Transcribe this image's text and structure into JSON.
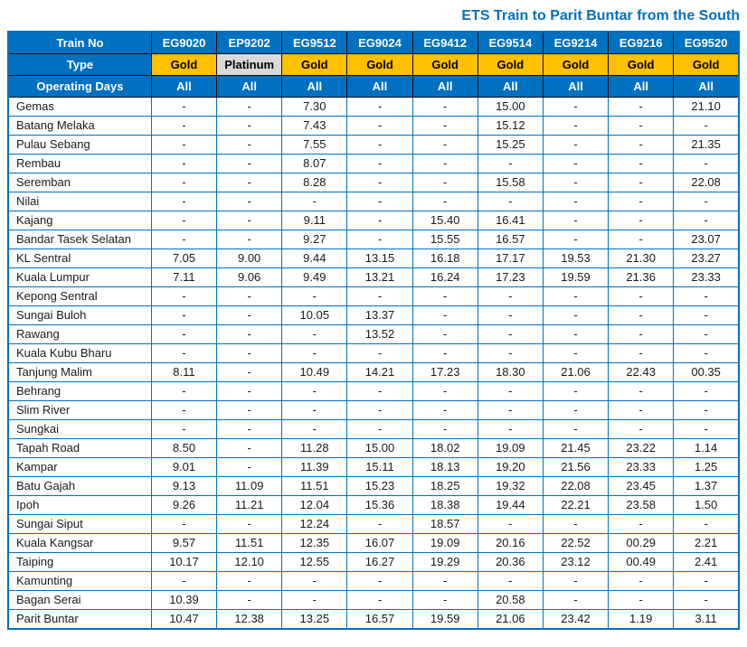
{
  "title": "ETS Train to Parit Buntar from the South",
  "colors": {
    "header_blue": "#0070C0",
    "gold": "#FFC000",
    "platinum": "#D9D9D9",
    "border_blue": "#0070C0",
    "title_blue": "#0070C0",
    "cell_text": "#1a1a1a"
  },
  "table": {
    "row_headers": {
      "train_no": "Train No",
      "type": "Type",
      "operating_days": "Operating Days"
    },
    "trains": [
      {
        "no": "EG9020",
        "type": "Gold",
        "days": "All"
      },
      {
        "no": "EP9202",
        "type": "Platinum",
        "days": "All"
      },
      {
        "no": "EG9512",
        "type": "Gold",
        "days": "All"
      },
      {
        "no": "EG9024",
        "type": "Gold",
        "days": "All"
      },
      {
        "no": "EG9412",
        "type": "Gold",
        "days": "All"
      },
      {
        "no": "EG9514",
        "type": "Gold",
        "days": "All"
      },
      {
        "no": "EG9214",
        "type": "Gold",
        "days": "All"
      },
      {
        "no": "EG9216",
        "type": "Gold",
        "days": "All"
      },
      {
        "no": "EG9520",
        "type": "Gold",
        "days": "All"
      }
    ],
    "stations": [
      {
        "name": "Gemas",
        "times": [
          "-",
          "-",
          "7.30",
          "-",
          "-",
          "15.00",
          "-",
          "-",
          "21.10"
        ]
      },
      {
        "name": "Batang Melaka",
        "times": [
          "-",
          "-",
          "7.43",
          "-",
          "-",
          "15.12",
          "-",
          "-",
          "-"
        ]
      },
      {
        "name": "Pulau Sebang",
        "times": [
          "-",
          "-",
          "7.55",
          "-",
          "-",
          "15.25",
          "-",
          "-",
          "21.35"
        ]
      },
      {
        "name": "Rembau",
        "times": [
          "-",
          "-",
          "8.07",
          "-",
          "-",
          "-",
          "-",
          "-",
          "-"
        ]
      },
      {
        "name": "Seremban",
        "times": [
          "-",
          "-",
          "8.28",
          "-",
          "-",
          "15.58",
          "-",
          "-",
          "22.08"
        ]
      },
      {
        "name": "Nilai",
        "times": [
          "-",
          "-",
          "-",
          "-",
          "-",
          "-",
          "-",
          "-",
          "-"
        ]
      },
      {
        "name": "Kajang",
        "times": [
          "-",
          "-",
          "9.11",
          "-",
          "15.40",
          "16.41",
          "-",
          "-",
          "-"
        ]
      },
      {
        "name": "Bandar Tasek Selatan",
        "times": [
          "-",
          "-",
          "9.27",
          "-",
          "15.55",
          "16.57",
          "-",
          "-",
          "23.07"
        ]
      },
      {
        "name": "KL Sentral",
        "times": [
          "7.05",
          "9.00",
          "9.44",
          "13.15",
          "16.18",
          "17.17",
          "19.53",
          "21.30",
          "23.27"
        ]
      },
      {
        "name": "Kuala Lumpur",
        "times": [
          "7.11",
          "9.06",
          "9.49",
          "13.21",
          "16.24",
          "17.23",
          "19.59",
          "21.36",
          "23.33"
        ]
      },
      {
        "name": "Kepong Sentral",
        "times": [
          "-",
          "-",
          "-",
          "-",
          "-",
          "-",
          "-",
          "-",
          "-"
        ]
      },
      {
        "name": "Sungai Buloh",
        "times": [
          "-",
          "-",
          "10.05",
          "13.37",
          "-",
          "-",
          "-",
          "-",
          "-"
        ]
      },
      {
        "name": "Rawang",
        "times": [
          "-",
          "-",
          "-",
          "13.52",
          "-",
          "-",
          "-",
          "-",
          "-"
        ]
      },
      {
        "name": "Kuala Kubu Bharu",
        "times": [
          "-",
          "-",
          "-",
          "-",
          "-",
          "-",
          "-",
          "-",
          "-"
        ]
      },
      {
        "name": "Tanjung Malim",
        "times": [
          "8.11",
          "-",
          "10.49",
          "14.21",
          "17.23",
          "18.30",
          "21.06",
          "22.43",
          "00.35"
        ]
      },
      {
        "name": "Behrang",
        "times": [
          "-",
          "-",
          "-",
          "-",
          "-",
          "-",
          "-",
          "-",
          "-"
        ]
      },
      {
        "name": "Slim River",
        "times": [
          "-",
          "-",
          "-",
          "-",
          "-",
          "-",
          "-",
          "-",
          "-"
        ]
      },
      {
        "name": "Sungkai",
        "times": [
          "-",
          "-",
          "-",
          "-",
          "-",
          "-",
          "-",
          "-",
          "-"
        ]
      },
      {
        "name": "Tapah Road",
        "times": [
          "8.50",
          "-",
          "11.28",
          "15.00",
          "18.02",
          "19.09",
          "21.45",
          "23.22",
          "1.14"
        ]
      },
      {
        "name": "Kampar",
        "times": [
          "9.01",
          "-",
          "11.39",
          "15.11",
          "18.13",
          "19.20",
          "21.56",
          "23.33",
          "1.25"
        ]
      },
      {
        "name": "Batu Gajah",
        "times": [
          "9.13",
          "11.09",
          "11.51",
          "15.23",
          "18.25",
          "19.32",
          "22.08",
          "23.45",
          "1.37"
        ]
      },
      {
        "name": "Ipoh",
        "times": [
          "9.26",
          "11.21",
          "12.04",
          "15.36",
          "18.38",
          "19.44",
          "22.21",
          "23.58",
          "1.50"
        ]
      },
      {
        "name": "Sungai Siput",
        "times": [
          "-",
          "-",
          "12.24",
          "-",
          "18.57",
          "-",
          "-",
          "-",
          "-"
        ]
      },
      {
        "name": "Kuala Kangsar",
        "times": [
          "9.57",
          "11.51",
          "12.35",
          "16.07",
          "19.09",
          "20.16",
          "22.52",
          "00.29",
          "2.21"
        ]
      },
      {
        "name": "Taiping",
        "times": [
          "10.17",
          "12.10",
          "12.55",
          "16.27",
          "19.29",
          "20.36",
          "23.12",
          "00.49",
          "2.41"
        ]
      },
      {
        "name": "Kamunting",
        "times": [
          "-",
          "-",
          "-",
          "-",
          "-",
          "-",
          "-",
          "-",
          "-"
        ]
      },
      {
        "name": "Bagan Serai",
        "times": [
          "10.39",
          "-",
          "-",
          "-",
          "-",
          "20.58",
          "-",
          "-",
          "-"
        ]
      },
      {
        "name": "Parit Buntar",
        "times": [
          "10.47",
          "12.38",
          "13.25",
          "16.57",
          "19.59",
          "21.06",
          "23.42",
          "1.19",
          "3.11"
        ]
      }
    ]
  }
}
